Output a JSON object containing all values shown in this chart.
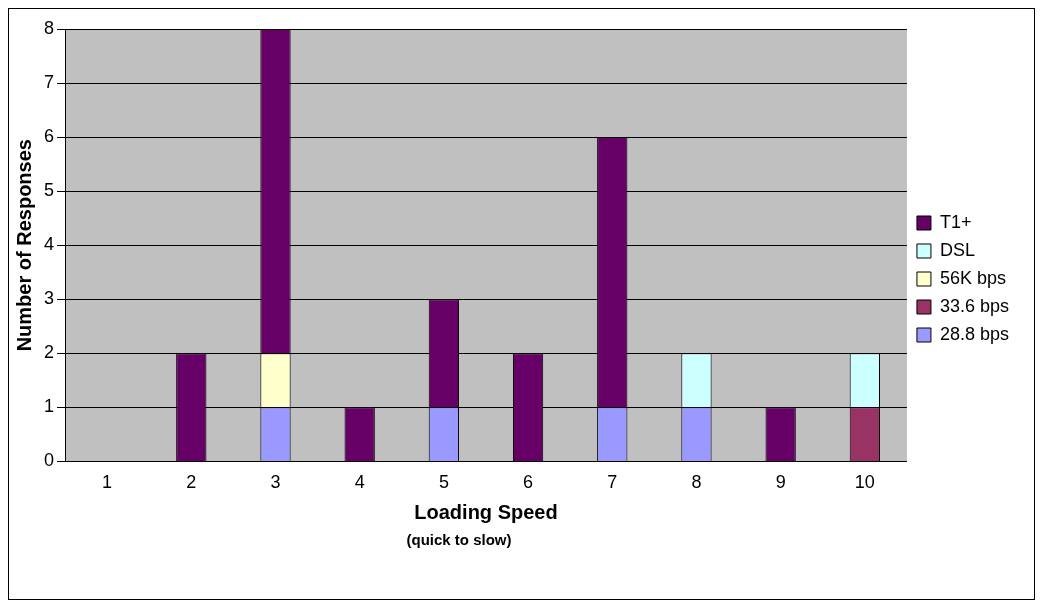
{
  "chart_data": {
    "type": "bar",
    "stacked": true,
    "xlabel": "Loading Speed",
    "ylabel": "Number of Responses",
    "annotations": [
      "(quick to slow)"
    ],
    "categories": [
      "1",
      "2",
      "3",
      "4",
      "5",
      "6",
      "7",
      "8",
      "9",
      "10"
    ],
    "series": [
      {
        "name": "28.8 bps",
        "color": "#9999ff",
        "values": [
          0,
          0,
          1,
          0,
          1,
          0,
          1,
          1,
          0,
          0
        ]
      },
      {
        "name": "33.6 bps",
        "color": "#993366",
        "values": [
          0,
          0,
          0,
          0,
          0,
          0,
          0,
          0,
          0,
          1
        ]
      },
      {
        "name": "56K bps",
        "color": "#ffffcc",
        "values": [
          0,
          0,
          1,
          0,
          0,
          0,
          0,
          0,
          0,
          0
        ]
      },
      {
        "name": "DSL",
        "color": "#ccffff",
        "values": [
          0,
          0,
          0,
          0,
          0,
          0,
          0,
          1,
          0,
          1
        ]
      },
      {
        "name": "T1+",
        "color": "#660066",
        "values": [
          0,
          2,
          6,
          1,
          2,
          2,
          5,
          0,
          1,
          0
        ]
      }
    ],
    "ylim": [
      0,
      8
    ],
    "yticks": [
      0,
      1,
      2,
      3,
      4,
      5,
      6,
      7,
      8
    ],
    "grid": "y",
    "legend": "right"
  }
}
